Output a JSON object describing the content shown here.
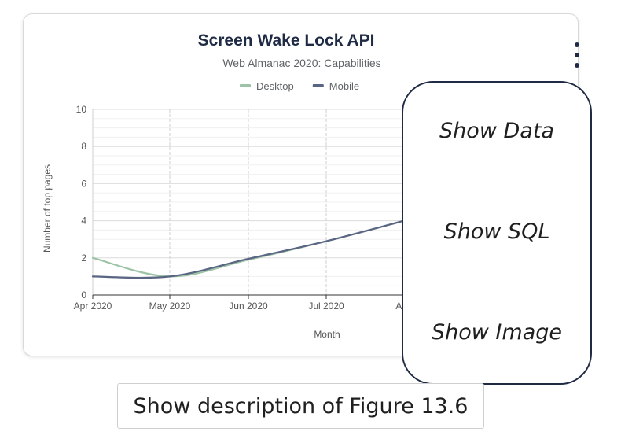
{
  "chart_data": {
    "type": "line",
    "title": "Screen Wake Lock API",
    "subtitle": "Web Almanac 2020: Capabilities",
    "xlabel": "Month",
    "ylabel": "Number of top pages",
    "ylim": [
      0,
      10
    ],
    "yticks": [
      "0",
      "2",
      "4",
      "6",
      "8",
      "10"
    ],
    "x_tick_labels": [
      "Apr 2020",
      "May 2020",
      "Jun 2020",
      "Jul 2020",
      "Aug"
    ],
    "legend_position": "top",
    "grid": true,
    "series": [
      {
        "name": "Desktop",
        "color": "#9cc3a6",
        "values": [
          2,
          1,
          1.9,
          2.9,
          4
        ]
      },
      {
        "name": "Mobile",
        "color": "#5a6584",
        "values": [
          1,
          1,
          1.95,
          2.9,
          4
        ]
      }
    ]
  },
  "menu": {
    "items": [
      "Show Data",
      "Show SQL",
      "Show Image"
    ]
  },
  "description_button": "Show description of Figure 13.6"
}
